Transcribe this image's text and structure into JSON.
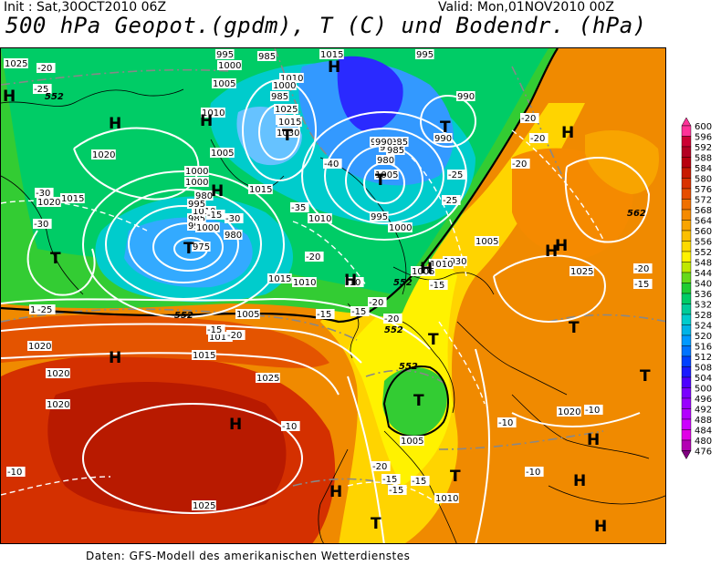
{
  "header": {
    "init": "Init : Sat,30OCT2010 06Z",
    "valid": "Valid: Mon,01NOV2010 00Z",
    "title": "500 hPa Geopot.(gpdm), T (C) und Bodendr. (hPa)"
  },
  "footer": "Daten: GFS-Modell des amerikanischen Wetterdienstes",
  "colorbar": {
    "levels": [
      "600",
      "596",
      "592",
      "588",
      "584",
      "580",
      "576",
      "572",
      "568",
      "564",
      "560",
      "556",
      "552",
      "548",
      "544",
      "540",
      "536",
      "532",
      "528",
      "524",
      "520",
      "516",
      "512",
      "508",
      "504",
      "500",
      "496",
      "492",
      "488",
      "484",
      "480",
      "476"
    ],
    "colors": [
      "#ff3399",
      "#cc0033",
      "#b30022",
      "#b8000e",
      "#c81a00",
      "#d93300",
      "#e64d00",
      "#f07000",
      "#f58a00",
      "#f8a400",
      "#fbbf00",
      "#fdda00",
      "#fff200",
      "#bfe800",
      "#66d91a",
      "#1fcc33",
      "#00cc66",
      "#00cc99",
      "#00cccc",
      "#00b3e6",
      "#0099ff",
      "#0073ff",
      "#0040ff",
      "#1a1aff",
      "#4d00ff",
      "#7a00ff",
      "#9900ff",
      "#b300ff",
      "#cc00ff",
      "#e000e6",
      "#b300b3",
      "#800080"
    ]
  },
  "map": {
    "pressure_labels": [
      "1025",
      "995",
      "1000",
      "1015",
      "1005",
      "985",
      "1010",
      "1000",
      "985",
      "1020",
      "1025",
      "1010",
      "1015",
      "1030",
      "1005",
      "1010",
      "995",
      "1020",
      "990",
      "1015",
      "1000",
      "990",
      "975",
      "985",
      "1000",
      "980",
      "985",
      "980",
      "990",
      "1000",
      "1010",
      "985",
      "1015",
      "1005",
      "995",
      "975",
      "1030",
      "1010",
      "1005",
      "980",
      "985",
      "990",
      "1005",
      "1010",
      "995",
      "1000",
      "1010",
      "1015",
      "1005",
      "1010",
      "1020",
      "1020",
      "1015",
      "1025",
      "1020",
      "1005",
      "1010",
      "1025",
      "1020",
      "1010",
      "1025"
    ],
    "temp_labels": [
      "-20",
      "-25",
      "-20",
      "-15",
      "-30",
      "-40",
      "-20",
      "-25",
      "-30",
      "-25",
      "-35",
      "-30",
      "-20",
      "-15",
      "-15",
      "-20",
      "-20",
      "-15",
      "-15",
      "-10",
      "-10",
      "-10",
      "-10",
      "-15",
      "-20",
      "-15",
      "-20",
      "-25",
      "-20",
      "-15",
      "-10",
      "-10",
      "-15",
      "-20"
    ],
    "geo_labels": [
      "552",
      "562",
      "552",
      "552",
      "552",
      "552"
    ],
    "high_label": "H",
    "low_label": "T"
  }
}
